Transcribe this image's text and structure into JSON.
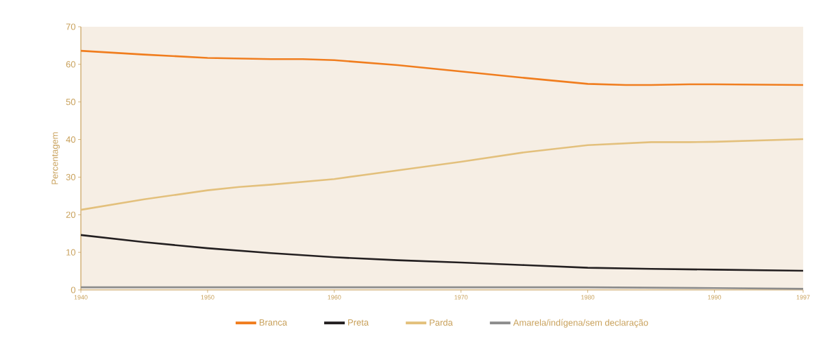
{
  "chart_data": {
    "type": "line",
    "ylabel": "Percentagem",
    "xlim": [
      1940,
      1997
    ],
    "ylim": [
      0,
      70
    ],
    "xticks": [
      1940,
      1950,
      1960,
      1970,
      1980,
      1990,
      1997
    ],
    "yticks": [
      0,
      10,
      20,
      30,
      40,
      50,
      60,
      70
    ],
    "grid": false,
    "legend": "bottom",
    "marker": "none",
    "line_style": "solid",
    "series": [
      {
        "name": "Branca",
        "color": "#f07d1e",
        "x": [
          1940,
          1945,
          1950,
          1955,
          1957.5,
          1960,
          1965,
          1970,
          1975,
          1980,
          1983,
          1985,
          1988,
          1990,
          1997
        ],
        "values": [
          63.6,
          62.6,
          61.7,
          61.4,
          61.4,
          61.1,
          59.8,
          58.1,
          56.4,
          54.8,
          54.5,
          54.5,
          54.7,
          54.7,
          54.5
        ]
      },
      {
        "name": "Preta",
        "color": "#231f20",
        "x": [
          1940,
          1945,
          1950,
          1955,
          1960,
          1965,
          1970,
          1975,
          1980,
          1985,
          1990,
          1997
        ],
        "values": [
          14.6,
          12.7,
          11.1,
          9.8,
          8.7,
          7.9,
          7.3,
          6.6,
          5.9,
          5.6,
          5.4,
          5.1
        ]
      },
      {
        "name": "Parda",
        "color": "#e3c07c",
        "x": [
          1940,
          1945,
          1950,
          1952.5,
          1955,
          1960,
          1965,
          1970,
          1975,
          1980,
          1985,
          1988,
          1990,
          1997
        ],
        "values": [
          21.3,
          24.1,
          26.5,
          27.4,
          28.0,
          29.5,
          31.8,
          34.1,
          36.6,
          38.5,
          39.3,
          39.3,
          39.4,
          40.1
        ]
      },
      {
        "name": "Amarela/indígena/sem declaração",
        "color": "#8c8c8c",
        "x": [
          1940,
          1950,
          1960,
          1970,
          1980,
          1990,
          1997
        ],
        "values": [
          0.7,
          0.7,
          0.7,
          0.7,
          0.7,
          0.5,
          0.3
        ]
      }
    ]
  }
}
